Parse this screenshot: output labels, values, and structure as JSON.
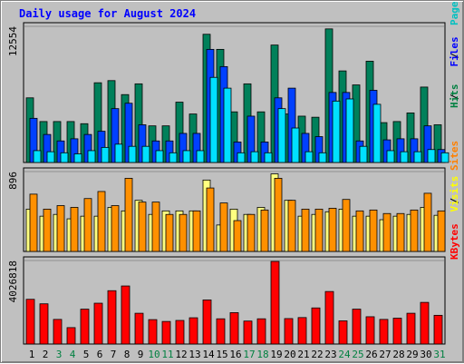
{
  "title": "Daily usage for August 2024",
  "chart_data": [
    {
      "type": "bar",
      "panel": "hits-files-pages",
      "ymax_label": "12554",
      "ymax": 12554,
      "legend": [
        {
          "text": "Pages",
          "color": "#00c0c0"
        },
        {
          "text": "Files",
          "color": "#0000ff"
        },
        {
          "text": "Hits",
          "color": "#008040"
        }
      ],
      "series": [
        {
          "name": "Hits",
          "color": "#00805a",
          "values": [
            6000,
            3800,
            3800,
            3800,
            3600,
            7400,
            7600,
            6300,
            7300,
            3400,
            3400,
            5600,
            4500,
            11900,
            10500,
            4700,
            7300,
            4700,
            10900,
            4500,
            4300,
            4200,
            12400,
            8500,
            7200,
            9400,
            3700,
            3800,
            4600,
            7000,
            3500
          ]
        },
        {
          "name": "Files",
          "color": "#0040ff",
          "values": [
            4100,
            2600,
            2000,
            2200,
            2600,
            2900,
            5000,
            5500,
            3500,
            2000,
            2000,
            2700,
            2700,
            10500,
            8900,
            1900,
            4300,
            1900,
            6000,
            6900,
            2700,
            2400,
            6500,
            6500,
            2000,
            6700,
            2100,
            2200,
            2200,
            3400,
            1200
          ]
        },
        {
          "name": "Pages",
          "color": "#00e0ff",
          "values": [
            1100,
            1000,
            900,
            800,
            1100,
            1400,
            1700,
            1500,
            1500,
            1100,
            900,
            1100,
            1100,
            7900,
            6900,
            900,
            1000,
            900,
            5000,
            3200,
            1000,
            900,
            5700,
            5900,
            1500,
            5400,
            1100,
            1000,
            1000,
            1200,
            900
          ]
        }
      ]
    },
    {
      "type": "bar",
      "panel": "visits-sites",
      "ymax_label": "896",
      "ymax": 896,
      "legend": [
        {
          "text": "Sites",
          "color": "#ff8000"
        },
        {
          "text": "Visits",
          "color": "#ffff00"
        }
      ],
      "series": [
        {
          "name": "Visits",
          "color": "#ffff80",
          "values": [
            480,
            400,
            420,
            370,
            400,
            400,
            500,
            460,
            580,
            420,
            460,
            460,
            460,
            810,
            300,
            480,
            420,
            500,
            880,
            580,
            400,
            420,
            450,
            480,
            400,
            400,
            360,
            400,
            420,
            500,
            410
          ]
        },
        {
          "name": "Sites",
          "color": "#ff9000",
          "values": [
            650,
            480,
            520,
            500,
            600,
            680,
            520,
            830,
            560,
            560,
            420,
            420,
            460,
            720,
            550,
            350,
            420,
            470,
            830,
            580,
            480,
            480,
            490,
            590,
            460,
            470,
            430,
            430,
            470,
            660,
            460
          ]
        }
      ]
    },
    {
      "type": "bar",
      "panel": "kbytes",
      "ymax_label": "4026818",
      "ymax": 4026818,
      "legend": [
        {
          "text": "KBytes",
          "color": "#ff0000"
        }
      ],
      "series": [
        {
          "name": "KBytes",
          "color": "#ff0000",
          "values": [
            2180000,
            1960000,
            1200000,
            800000,
            1700000,
            1990000,
            2600000,
            2830000,
            1500000,
            1190000,
            1100000,
            1150000,
            1280000,
            2150000,
            1230000,
            1530000,
            1120000,
            1230000,
            4026818,
            1240000,
            1290000,
            1760000,
            2560000,
            1130000,
            1700000,
            1330000,
            1200000,
            1260000,
            1500000,
            2030000,
            1400000
          ]
        }
      ]
    }
  ],
  "x_labels": [
    "1",
    "2",
    "3",
    "4",
    "5",
    "6",
    "7",
    "8",
    "9",
    "10",
    "11",
    "12",
    "13",
    "14",
    "15",
    "16",
    "17",
    "18",
    "19",
    "20",
    "21",
    "22",
    "23",
    "24",
    "25",
    "26",
    "27",
    "28",
    "29",
    "30",
    "31"
  ],
  "weekend_days": [
    3,
    4,
    10,
    11,
    17,
    18,
    24,
    25,
    31
  ],
  "colors": {
    "background": "#c0c0c0",
    "title": "#0000ff",
    "day_label": "#000000",
    "weekend_label": "#008040"
  }
}
